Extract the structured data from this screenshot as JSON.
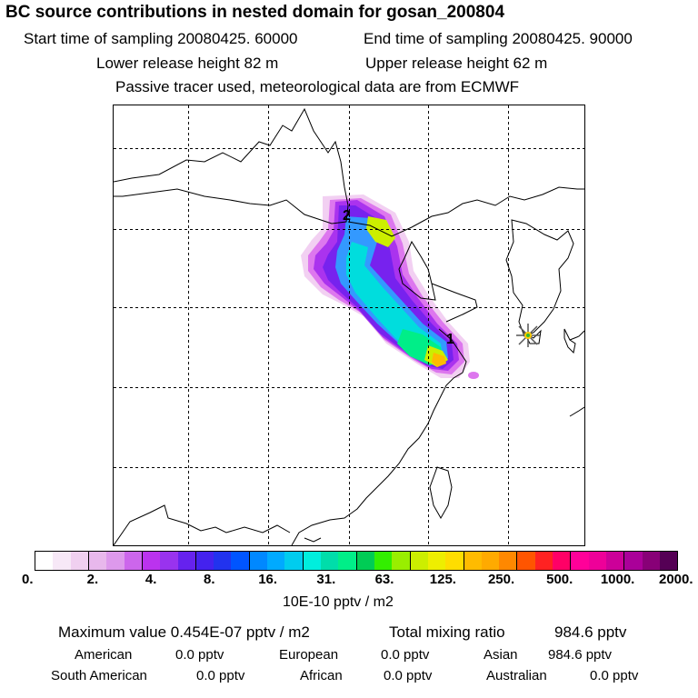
{
  "header": {
    "title": "BC  source contributions in nested domain for gosan_200804",
    "start_time": "Start time of sampling 20080425. 60000",
    "end_time": "End time of sampling 20080425. 90000",
    "lower_release": "Lower release height   82 m",
    "upper_release": "Upper release height   62 m",
    "tracer_note": "Passive tracer used, meteorological data are from ECMWF"
  },
  "map": {
    "labels": [
      "1",
      "2"
    ],
    "receptor_marker": "star-marker",
    "plume_colors": [
      "#f2d0f2",
      "#dd77ee",
      "#aa33ee",
      "#7722ee",
      "#3399ff",
      "#00dddd",
      "#00ee88",
      "#ccee00",
      "#ffbb00"
    ]
  },
  "colorbar": {
    "colors": [
      "#ffffff",
      "#f7e8f7",
      "#f0d0f0",
      "#e8b8ec",
      "#dd99ec",
      "#cc66ec",
      "#bb33ee",
      "#9933ee",
      "#6622ee",
      "#4422ee",
      "#2233ee",
      "#0055ff",
      "#0088ff",
      "#00aaff",
      "#00ccee",
      "#00eedd",
      "#00ddaa",
      "#00ee88",
      "#00cc55",
      "#33ee00",
      "#99ee00",
      "#ccee00",
      "#eeee00",
      "#ffdd00",
      "#ffbb00",
      "#ffaa00",
      "#ff8800",
      "#ff5500",
      "#ff2222",
      "#ff0066",
      "#ff0099",
      "#ee0099",
      "#cc0099",
      "#aa0099",
      "#880077",
      "#550055"
    ],
    "tick_labels": [
      "0.",
      "2.",
      "4.",
      "8.",
      "16.",
      "31.",
      "63.",
      "125.",
      "250.",
      "500.",
      "1000.",
      "2000."
    ],
    "units": "10E-10 pptv / m2"
  },
  "footer": {
    "max_value": "Maximum value  0.454E-07 pptv / m2",
    "total_label": "Total mixing ratio",
    "total_value": "984.6 pptv",
    "rows": [
      [
        {
          "label": "American",
          "value": "0.0 pptv"
        },
        {
          "label": "European",
          "value": "0.0 pptv"
        },
        {
          "label": "Asian",
          "value": "984.6 pptv"
        }
      ],
      [
        {
          "label": "South American",
          "value": "0.0 pptv"
        },
        {
          "label": "African",
          "value": "0.0 pptv"
        },
        {
          "label": "Australian",
          "value": "0.0 pptv"
        }
      ]
    ]
  }
}
